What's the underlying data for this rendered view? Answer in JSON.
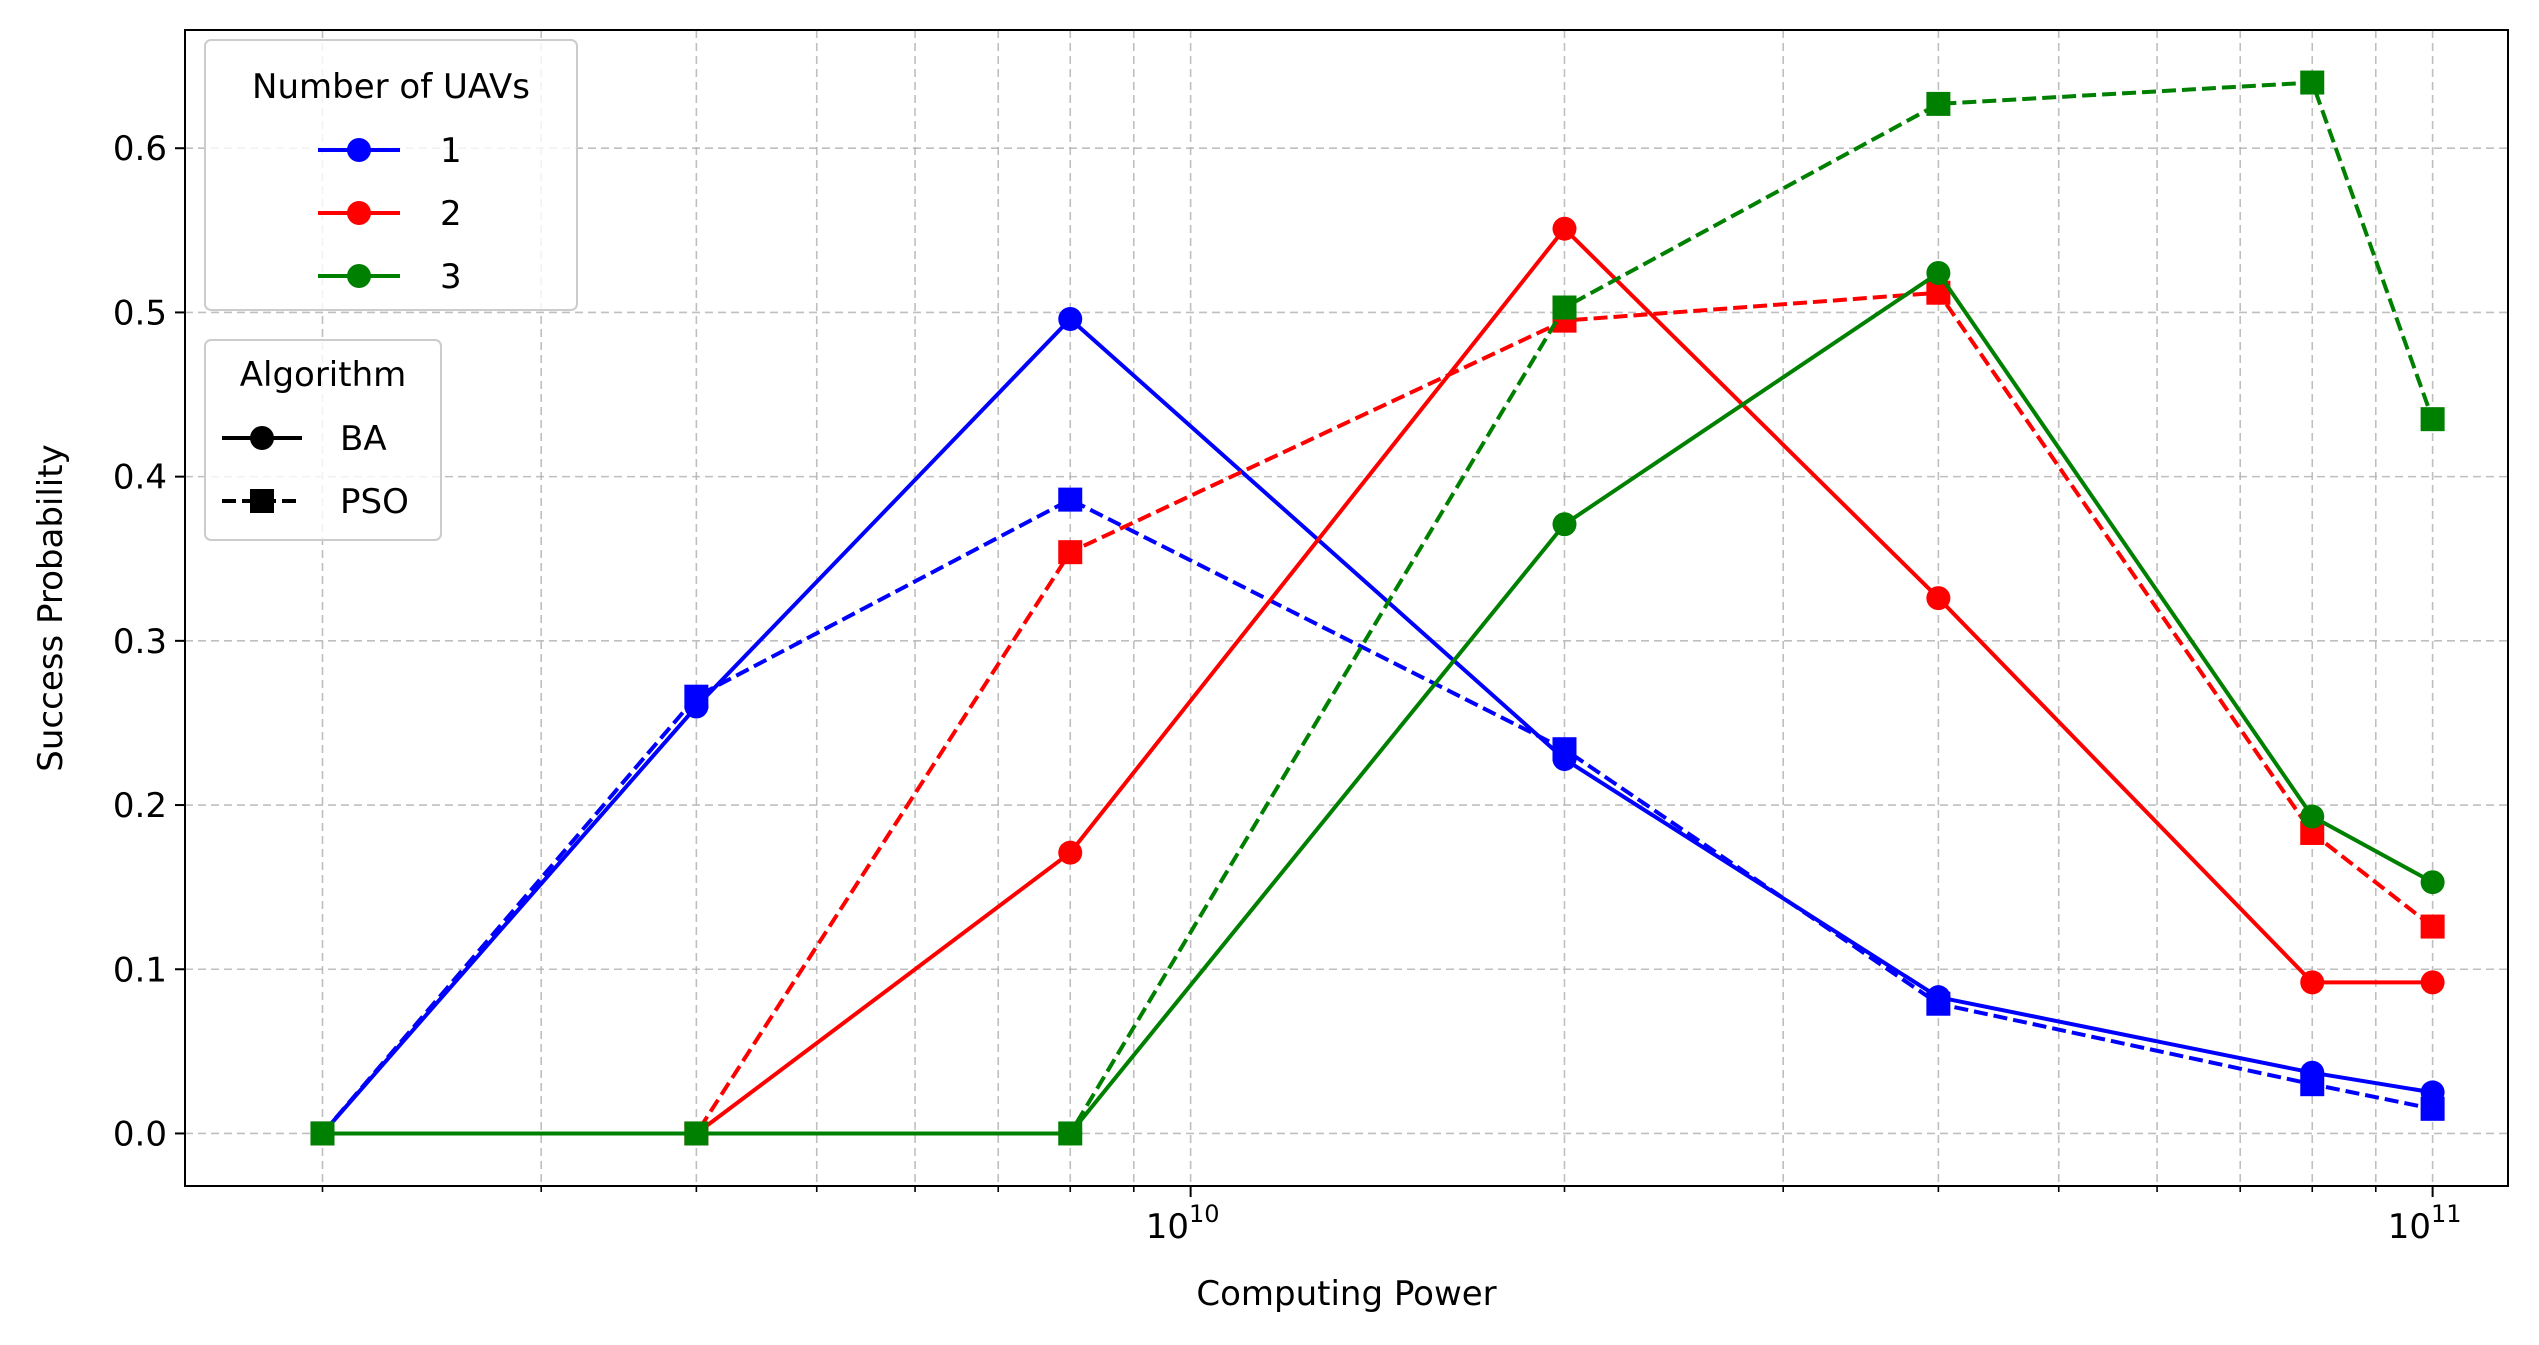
{
  "chart_data": {
    "type": "line",
    "title": "",
    "xlabel": "Computing Power",
    "ylabel": "Success Probability",
    "xscale": "log",
    "xlim": [
      1550000000.0,
      115000000000.0
    ],
    "ylim": [
      -0.032,
      0.672
    ],
    "x": [
      2000000000.0,
      4000000000.0,
      8000000000.0,
      20000000000.0,
      40000000000.0,
      80000000000.0,
      100000000000.0
    ],
    "x_ticks": [
      {
        "value": 10000000000.0,
        "base": "10",
        "exp": "10"
      },
      {
        "value": 100000000000.0,
        "base": "10",
        "exp": "11"
      }
    ],
    "y_ticks": [
      {
        "value": 0.0,
        "label": "0.0"
      },
      {
        "value": 0.1,
        "label": "0.1"
      },
      {
        "value": 0.2,
        "label": "0.2"
      },
      {
        "value": 0.3,
        "label": "0.3"
      },
      {
        "value": 0.4,
        "label": "0.4"
      },
      {
        "value": 0.5,
        "label": "0.5"
      },
      {
        "value": 0.6,
        "label": "0.6"
      }
    ],
    "grid": true,
    "legend_uav": {
      "title": "Number of UAVs",
      "placement": "top-left",
      "entries": [
        {
          "label": "1",
          "color": "#0000ff"
        },
        {
          "label": "2",
          "color": "#ff0000"
        },
        {
          "label": "3",
          "color": "#008000"
        }
      ]
    },
    "legend_algorithm": {
      "title": "Algorithm",
      "placement": "upper-left",
      "entries": [
        {
          "label": "BA",
          "dash": "solid",
          "marker": "circle"
        },
        {
          "label": "PSO",
          "dash": "dashed",
          "marker": "square"
        }
      ]
    },
    "series": [
      {
        "uav": "1",
        "algorithm": "BA",
        "color": "#0000ff",
        "dash": "solid",
        "marker": "circle",
        "values": [
          0.0,
          0.26,
          0.496,
          0.228,
          0.083,
          0.037,
          0.025
        ]
      },
      {
        "uav": "1",
        "algorithm": "PSO",
        "color": "#0000ff",
        "dash": "dashed",
        "marker": "square",
        "values": [
          0.0,
          0.266,
          0.386,
          0.234,
          0.079,
          0.03,
          0.015
        ]
      },
      {
        "uav": "2",
        "algorithm": "BA",
        "color": "#ff0000",
        "dash": "solid",
        "marker": "circle",
        "values": [
          0.0,
          0.0,
          0.171,
          0.551,
          0.326,
          0.092,
          0.092
        ]
      },
      {
        "uav": "2",
        "algorithm": "PSO",
        "color": "#ff0000",
        "dash": "dashed",
        "marker": "square",
        "values": [
          0.0,
          0.0,
          0.354,
          0.495,
          0.512,
          0.183,
          0.126
        ]
      },
      {
        "uav": "3",
        "algorithm": "BA",
        "color": "#008000",
        "dash": "solid",
        "marker": "circle",
        "values": [
          0.0,
          0.0,
          0.0,
          0.371,
          0.524,
          0.193,
          0.153
        ]
      },
      {
        "uav": "3",
        "algorithm": "PSO",
        "color": "#008000",
        "dash": "dashed",
        "marker": "square",
        "values": [
          0.0,
          0.0,
          0.0,
          0.503,
          0.627,
          0.64,
          0.435
        ]
      }
    ]
  }
}
